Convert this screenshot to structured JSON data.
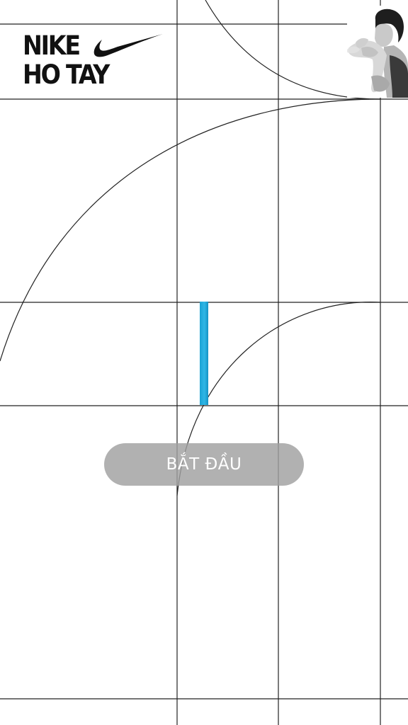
{
  "logo": {
    "line1": "NIKE",
    "line2": "HO TAY",
    "mark_icon": "swoosh-icon"
  },
  "athlete": {
    "image": "athlete-photo"
  },
  "progress": {
    "fraction": 1.0,
    "color": "#1aa3d4"
  },
  "start_button": {
    "label": "BẮT ĐẦU",
    "color": "#a0a0a0"
  },
  "colors": {
    "background": "#ffffff",
    "grid_lines": "#222222",
    "logo": "#111111"
  }
}
